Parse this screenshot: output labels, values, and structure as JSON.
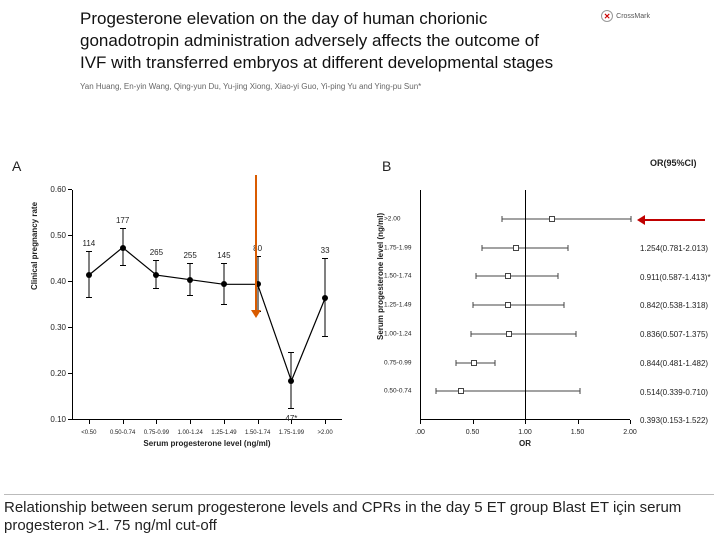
{
  "title": "Progesterone elevation on the day of human chorionic gonadotropin administration adversely affects the outcome of IVF with transferred embryos at different developmental stages",
  "authors": "Yan Huang, En-yin Wang, Qing-yun Du, Yu-jing Xiong, Xiao-yi Guo, Yi-ping Yu and Ying-pu Sun*",
  "crossmark": "CrossMark",
  "panelA": {
    "label": "A",
    "ylabel": "Clinical pregnancy rate",
    "xlabel": "Serum progesterone level (ng/ml)",
    "ylim": [
      0.1,
      0.6
    ],
    "yticks": [
      0.1,
      0.2,
      0.3,
      0.4,
      0.5,
      0.6
    ],
    "xticks": [
      "<0.50",
      "0.50-0.74",
      "0.75-0.99",
      "1.00-1.24",
      "1.25-1.49",
      "1.50-1.74",
      "1.75-1.99",
      ">2.00"
    ],
    "points": [
      {
        "y": 0.415,
        "n": "114",
        "err": 0.05
      },
      {
        "y": 0.475,
        "n": "177",
        "err": 0.04
      },
      {
        "y": 0.415,
        "n": "265",
        "err": 0.03
      },
      {
        "y": 0.405,
        "n": "255",
        "err": 0.035
      },
      {
        "y": 0.395,
        "n": "145",
        "err": 0.045
      },
      {
        "y": 0.395,
        "n": "80",
        "err": 0.06
      },
      {
        "y": 0.185,
        "n": "47*",
        "err": 0.06
      },
      {
        "y": 0.365,
        "n": "33",
        "err": 0.085
      }
    ],
    "line_color": "#000000",
    "point_color": "#000000"
  },
  "panelB": {
    "label": "B",
    "ylabel": "Serum progesterone level (ng/ml)",
    "xlabel": "OR",
    "or_header": "OR(95%CI)",
    "xlim": [
      0.0,
      2.0
    ],
    "xticks": [
      0.0,
      0.5,
      1.0,
      1.5,
      2.0
    ],
    "ref_line": 1.0,
    "rows": [
      {
        "cat": ">2.00",
        "or": 1.254,
        "lo": 0.781,
        "hi": 2.013,
        "text": "1.254(0.781-2.013)"
      },
      {
        "cat": "1.75-1.99",
        "or": 0.911,
        "lo": 0.587,
        "hi": 1.413,
        "text": "0.911(0.587-1.413)*",
        "star": true
      },
      {
        "cat": "1.50-1.74",
        "or": 0.842,
        "lo": 0.538,
        "hi": 1.318,
        "text": "0.842(0.538-1.318)"
      },
      {
        "cat": "1.25-1.49",
        "or": 0.836,
        "lo": 0.507,
        "hi": 1.375,
        "text": "0.836(0.507-1.375)"
      },
      {
        "cat": "1.00-1.24",
        "or": 0.844,
        "lo": 0.481,
        "hi": 1.482,
        "text": "0.844(0.481-1.482)"
      },
      {
        "cat": "0.75-0.99",
        "or": 0.514,
        "lo": 0.339,
        "hi": 0.71,
        "text": "0.514(0.339-0.710)"
      },
      {
        "cat": "0.50-0.74",
        "or": 0.393,
        "lo": 0.153,
        "hi": 1.522,
        "text": "0.393(0.153-1.522)"
      }
    ]
  },
  "arrows": {
    "down": {
      "color": "#d95b00"
    },
    "left": {
      "color": "#c00000"
    }
  },
  "caption": "Relationship between serum progesterone levels and CPRs in the day 5 ET group Blast ET için serum progesteron >1. 75 ng/ml cut-off"
}
